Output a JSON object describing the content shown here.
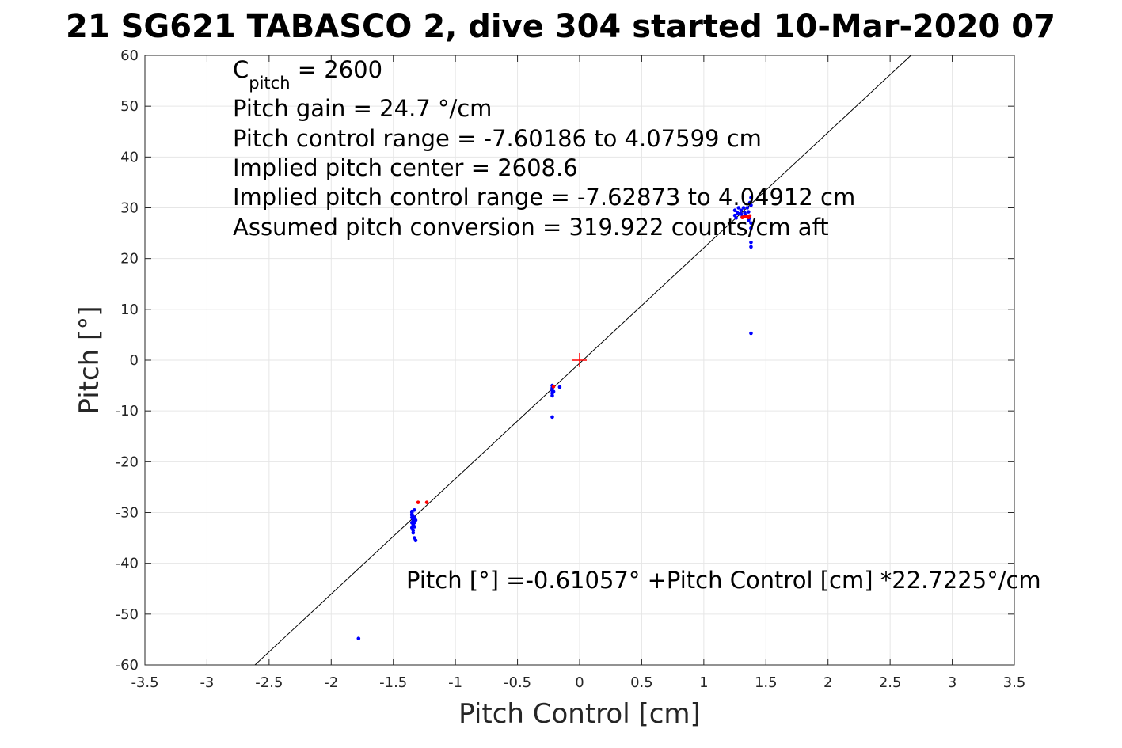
{
  "chart_data": {
    "type": "scatter",
    "title": "21 SG621 TABASCO 2, dive 304 started 10-Mar-2020 07",
    "xlabel": "Pitch Control [cm]",
    "ylabel": "Pitch [°]",
    "xlim": [
      -3.5,
      3.5
    ],
    "ylim": [
      -60,
      60
    ],
    "grid": true,
    "x_ticks": [
      -3.5,
      -3,
      -2.5,
      -2,
      -1.5,
      -1,
      -0.5,
      0,
      0.5,
      1,
      1.5,
      2,
      2.5,
      3,
      3.5
    ],
    "x_tick_labels": [
      "-3.5",
      "-3",
      "-2.5",
      "-2",
      "-1.5",
      "-1",
      "-0.5",
      "0",
      "0.5",
      "1",
      "1.5",
      "2",
      "2.5",
      "3",
      "3.5"
    ],
    "y_ticks": [
      -60,
      -50,
      -40,
      -30,
      -20,
      -10,
      0,
      10,
      20,
      30,
      40,
      50,
      60
    ],
    "y_tick_labels": [
      "-60",
      "-50",
      "-40",
      "-30",
      "-20",
      "-10",
      "0",
      "10",
      "20",
      "30",
      "40",
      "50",
      "60"
    ],
    "annotations": {
      "c_pitch_main": "C",
      "c_pitch_sub": "pitch",
      "c_pitch_value": " = 2600",
      "lines": [
        "Pitch gain = 24.7 °/cm",
        "Pitch control range = -7.60186 to 4.07599 cm",
        "Implied pitch center = 2608.6",
        "Implied pitch control range = -7.62873 to 4.04912 cm",
        "Assumed pitch conversion = 319.922 counts/cm aft"
      ],
      "fit_equation": "Pitch [°] =-0.61057° +Pitch Control [cm] *22.7225°/cm"
    },
    "fit_line": {
      "intercept": -0.61057,
      "slope": 22.7225,
      "color": "#000000"
    },
    "center_marker": {
      "x": 0,
      "y": 0,
      "color": "#ff0000"
    },
    "series": [
      {
        "color": "#0000ff",
        "points": [
          [
            -1.35,
            -30
          ],
          [
            -1.35,
            -30.5
          ],
          [
            -1.35,
            -31
          ],
          [
            -1.34,
            -31.5
          ],
          [
            -1.35,
            -32
          ],
          [
            -1.34,
            -32.5
          ],
          [
            -1.35,
            -33
          ],
          [
            -1.34,
            -33.5
          ],
          [
            -1.33,
            -29.5
          ],
          [
            -1.33,
            -31
          ],
          [
            -1.32,
            -31.5
          ],
          [
            -1.33,
            -32
          ],
          [
            -1.32,
            -35.5
          ],
          [
            -1.33,
            -35
          ],
          [
            -1.34,
            -34
          ],
          [
            -1.35,
            -29.8
          ],
          [
            -1.34,
            -30.8
          ],
          [
            -1.33,
            -32.8
          ],
          [
            -0.22,
            -5
          ],
          [
            -0.22,
            -5.5
          ],
          [
            -0.22,
            -6
          ],
          [
            -0.22,
            -6.5
          ],
          [
            -0.22,
            -7
          ],
          [
            -0.21,
            -6.2
          ],
          [
            -0.16,
            -5.3
          ],
          [
            -0.22,
            -11.2
          ],
          [
            1.25,
            28.5
          ],
          [
            1.25,
            29.5
          ],
          [
            1.26,
            28
          ],
          [
            1.27,
            29
          ],
          [
            1.28,
            30
          ],
          [
            1.29,
            28.8
          ],
          [
            1.3,
            29.5
          ],
          [
            1.31,
            28.2
          ],
          [
            1.32,
            30
          ],
          [
            1.33,
            29
          ],
          [
            1.34,
            28.5
          ],
          [
            1.35,
            30
          ],
          [
            1.36,
            29.2
          ],
          [
            1.37,
            28
          ],
          [
            1.37,
            31
          ],
          [
            1.38,
            30.5
          ],
          [
            1.38,
            27
          ],
          [
            1.38,
            26
          ],
          [
            1.38,
            32
          ],
          [
            1.38,
            23.2
          ],
          [
            1.38,
            22.3
          ],
          [
            1.38,
            5.3
          ],
          [
            1.36,
            27.5
          ],
          [
            1.3,
            28.8
          ],
          [
            -1.78,
            -54.8
          ]
        ]
      },
      {
        "color": "#ff0000",
        "points": [
          [
            -1.3,
            -28
          ],
          [
            -1.23,
            -28
          ],
          [
            -0.21,
            -5.2
          ],
          [
            1.31,
            28.1
          ],
          [
            1.33,
            28.3
          ],
          [
            1.35,
            28.2
          ],
          [
            1.37,
            28.4
          ],
          [
            1.36,
            28.1
          ]
        ]
      }
    ]
  }
}
